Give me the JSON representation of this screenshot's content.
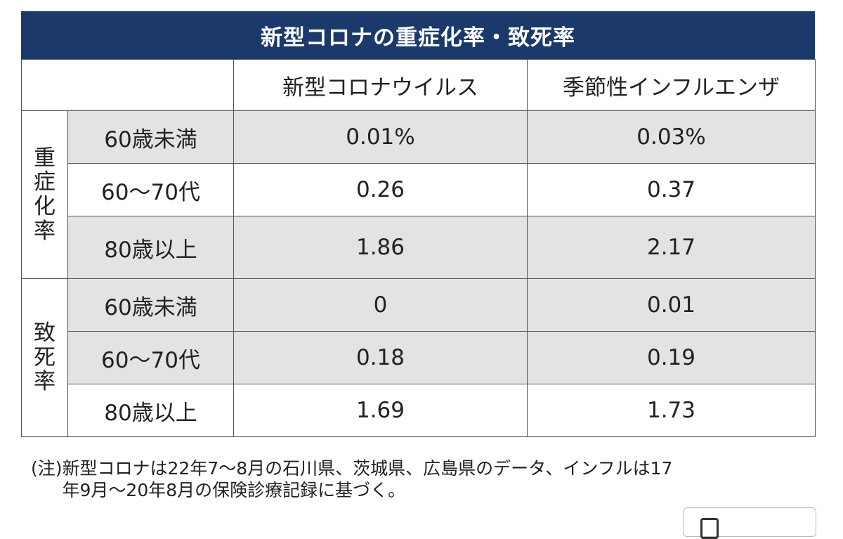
{
  "chart_data": {
    "type": "table",
    "title": "新型コロナの重症化率・致死率",
    "columns": [
      "",
      "",
      "新型コロナウイルス",
      "季節性インフルエンザ"
    ],
    "groups": [
      {
        "name": "重症化率",
        "name_chars": [
          "重",
          "症",
          "化",
          "率"
        ],
        "rows": [
          {
            "label": "60歳未満",
            "covid": "0.01%",
            "flu": "0.03%"
          },
          {
            "label": "60〜70代",
            "covid": "0.26",
            "flu": "0.37"
          },
          {
            "label": "80歳以上",
            "covid": "1.86",
            "flu": "2.17"
          }
        ]
      },
      {
        "name": "致死率",
        "name_chars": [
          "致",
          "死",
          "率"
        ],
        "rows": [
          {
            "label": "60歳未満",
            "covid": "0",
            "flu": "0.01"
          },
          {
            "label": "60〜70代",
            "covid": "0.18",
            "flu": "0.19"
          },
          {
            "label": "80歳以上",
            "covid": "1.69",
            "flu": "1.73"
          }
        ]
      }
    ],
    "note_lead": "(注)",
    "note_line1": "新型コロナは22年7〜8月の石川県、茨城県、広島県のデータ、インフルは17",
    "note_line2": "年9月〜20年8月の保険診療記録に基づく。"
  },
  "colors": {
    "title_bg": "#1b3a6b",
    "title_text": "#ffffff",
    "row_shade": "#e3e3e4",
    "border": "#555555"
  },
  "icons": {
    "corner_widget": "square-icon"
  }
}
